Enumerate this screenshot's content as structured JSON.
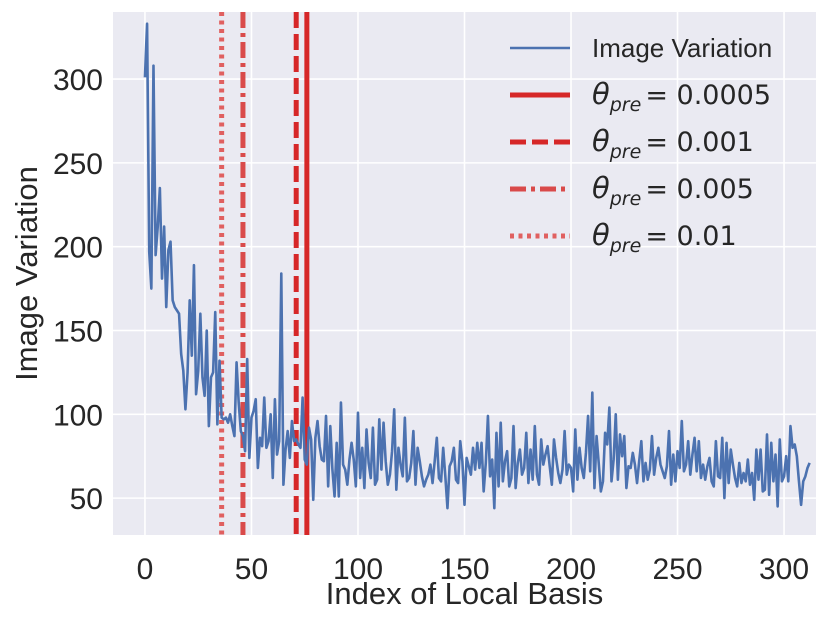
{
  "chart_data": {
    "type": "line",
    "title": "",
    "xlabel": "Index of Local Basis",
    "ylabel": "Image Variation",
    "xlim": [
      -15,
      315
    ],
    "ylim": [
      28,
      340
    ],
    "xticks": [
      0,
      50,
      100,
      150,
      200,
      250,
      300
    ],
    "yticks": [
      50,
      100,
      150,
      200,
      250,
      300
    ],
    "grid": true,
    "legend_position": "top-right",
    "series": [
      {
        "name": "Image Variation",
        "color": "#4c72b0",
        "x_start": 0,
        "x_step": 1,
        "values": [
          301,
          333,
          197,
          175,
          308,
          195,
          212,
          235,
          181,
          212,
          164,
          198,
          203,
          168,
          164,
          162,
          160,
          136,
          126,
          103,
          125,
          168,
          135,
          189,
          112,
          126,
          160,
          122,
          111,
          150,
          93,
          122,
          125,
          161,
          94,
          132,
          98,
          97,
          98,
          95,
          100,
          93,
          87,
          131,
          107,
          90,
          87,
          78,
          133,
          74,
          98,
          102,
          109,
          68,
          86,
          81,
          110,
          80,
          84,
          100,
          62,
          109,
          76,
          84,
          184,
          58,
          79,
          90,
          74,
          96,
          84,
          85,
          82,
          80,
          110,
          73,
          70,
          92,
          85,
          49,
          86,
          96,
          81,
          73,
          72,
          99,
          57,
          93,
          67,
          51,
          83,
          51,
          107,
          70,
          67,
          58,
          73,
          83,
          73,
          57,
          101,
          62,
          80,
          56,
          91,
          71,
          62,
          92,
          58,
          61,
          97,
          67,
          95,
          72,
          58,
          64,
          78,
          103,
          55,
          80,
          70,
          63,
          98,
          60,
          62,
          71,
          90,
          58,
          80,
          72,
          63,
          57,
          61,
          64,
          70,
          59,
          72,
          86,
          62,
          60,
          80,
          63,
          44,
          69,
          72,
          80,
          61,
          59,
          84,
          72,
          46,
          74,
          69,
          64,
          80,
          67,
          83,
          68,
          83,
          54,
          71,
          99,
          63,
          73,
          44,
          89,
          57,
          95,
          60,
          72,
          78,
          57,
          62,
          93,
          56,
          71,
          79,
          64,
          68,
          89,
          59,
          79,
          61,
          93,
          64,
          58,
          85,
          70,
          76,
          81,
          69,
          58,
          85,
          74,
          65,
          59,
          67,
          90,
          64,
          70,
          68,
          54,
          91,
          61,
          80,
          68,
          62,
          77,
          99,
          66,
          113,
          56,
          87,
          71,
          54,
          60,
          89,
          82,
          104,
          60,
          73,
          100,
          61,
          88,
          75,
          87,
          56,
          69,
          68,
          77,
          70,
          59,
          72,
          84,
          60,
          71,
          61,
          67,
          87,
          64,
          74,
          80,
          70,
          66,
          62,
          69,
          90,
          58,
          76,
          60,
          78,
          68,
          96,
          66,
          70,
          84,
          64,
          76,
          86,
          66,
          84,
          62,
          70,
          61,
          69,
          74,
          60,
          57,
          84,
          63,
          62,
          86,
          50,
          83,
          59,
          79,
          70,
          62,
          57,
          71,
          59,
          65,
          60,
          73,
          58,
          65,
          49,
          79,
          61,
          79,
          54,
          55,
          88,
          52,
          83,
          60,
          76,
          45,
          85,
          60,
          63,
          75,
          60,
          93,
          80,
          82,
          75,
          60,
          46,
          60,
          63,
          68,
          71
        ]
      },
      {
        "name": "θpre=0.0005",
        "label_base": "θ",
        "label_sub": "pre",
        "label_value": "= 0.0005",
        "type": "vline",
        "x": 76,
        "color": "#d62728",
        "style": "solid"
      },
      {
        "name": "θpre=0.001",
        "label_base": "θ",
        "label_sub": "pre",
        "label_value": "= 0.001",
        "type": "vline",
        "x": 71,
        "color": "#d62728",
        "style": "dashed"
      },
      {
        "name": "θpre=0.005",
        "label_base": "θ",
        "label_sub": "pre",
        "label_value": "= 0.005",
        "type": "vline",
        "x": 46,
        "color": "#d94a4a",
        "style": "dashdot"
      },
      {
        "name": "θpre=0.01",
        "label_base": "θ",
        "label_sub": "pre",
        "label_value": "= 0.01",
        "type": "vline",
        "x": 36,
        "color": "#e06060",
        "style": "dotted"
      }
    ]
  }
}
